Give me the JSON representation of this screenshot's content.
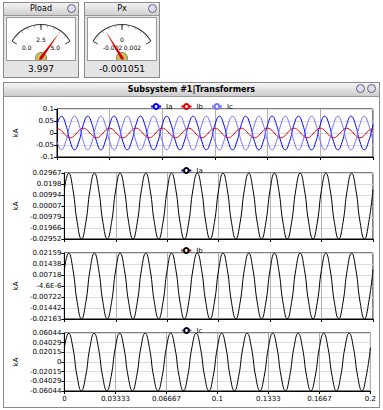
{
  "window": {
    "title": "Subsystem #1|Transformers"
  },
  "chart_data": [
    {
      "type": "gauge",
      "title": "Pload",
      "value": 3.997,
      "ylim": [
        0,
        5
      ],
      "yticks": [
        {
          "value": 0,
          "label": "0.0"
        },
        {
          "value": 2.5,
          "label": "2.5"
        },
        {
          "value": 5,
          "label": "5.0"
        }
      ]
    },
    {
      "type": "gauge",
      "title": "Px",
      "value": -0.001051,
      "ylim": [
        -0.002,
        0.002
      ],
      "yticks": [
        -0.002,
        0,
        0.002
      ]
    },
    {
      "type": "line",
      "ylabel": "kA",
      "grid": true,
      "legend": "top",
      "tick_labels": "y",
      "xlim": [
        0,
        0.2
      ],
      "xticks": [
        0,
        0.03333,
        0.06667,
        0.1,
        0.1333,
        0.1667,
        0.2
      ],
      "ylim": [
        -0.1,
        0.1
      ],
      "yticks": [
        -0.1,
        -0.05,
        0,
        0.05,
        0.1
      ],
      "x": [
        0,
        0.00278,
        0.00556,
        0.00833,
        0.01111,
        0.01389,
        0.01667,
        0.01944,
        0.02222,
        0.025,
        0.02778,
        0.03056,
        0.03333,
        0.03611,
        0.03889,
        0.04167,
        0.04444,
        0.04722,
        0.05,
        0.05278,
        0.05556,
        0.05833,
        0.06111,
        0.06389,
        0.06667,
        0.06944,
        0.07222,
        0.075,
        0.07778,
        0.08056,
        0.08333,
        0.08611,
        0.08889,
        0.09167,
        0.09444,
        0.09722,
        0.1,
        0.10278,
        0.10556,
        0.10833,
        0.11111,
        0.11389,
        0.11667,
        0.11944,
        0.12222,
        0.125,
        0.12778,
        0.13056,
        0.13333,
        0.13611,
        0.13889,
        0.14167,
        0.14444,
        0.14722,
        0.15,
        0.15278,
        0.15556,
        0.15833,
        0.16111,
        0.16389,
        0.16667,
        0.16944,
        0.17222,
        0.175,
        0.17778,
        0.18056,
        0.18333,
        0.18611,
        0.18889,
        0.19167,
        0.19444,
        0.19722,
        0.2
      ],
      "series": [
        {
          "name": "Ia",
          "color": "#0000ff",
          "values": [
            0.035,
            0.07,
            0.035,
            -0.035,
            -0.07,
            -0.035,
            0.035,
            0.07,
            0.035,
            -0.035,
            -0.07,
            -0.035,
            0.035,
            0.07,
            0.035,
            -0.035,
            -0.07,
            -0.035,
            0.035,
            0.07,
            0.035,
            -0.035,
            -0.07,
            -0.035,
            0.035,
            0.07,
            0.035,
            -0.035,
            -0.07,
            -0.035,
            0.035,
            0.07,
            0.035,
            -0.035,
            -0.07,
            -0.035,
            0.035,
            0.07,
            0.035,
            -0.035,
            -0.07,
            -0.035,
            0.035,
            0.07,
            0.035,
            -0.035,
            -0.07,
            -0.035,
            0.035,
            0.07,
            0.035,
            -0.035,
            -0.07,
            -0.035,
            0.035,
            0.07,
            0.035,
            -0.035,
            -0.07,
            -0.035,
            0.035,
            0.07,
            0.035,
            -0.035,
            -0.07,
            -0.035,
            0.035,
            0.07,
            0.035,
            -0.035,
            -0.07,
            -0.035,
            0.035
          ]
        },
        {
          "name": "Ib",
          "color": "#e00000",
          "values": [
            0.02,
            0.01,
            -0.01,
            -0.02,
            -0.01,
            0.01,
            0.02,
            0.01,
            -0.01,
            -0.02,
            -0.01,
            0.01,
            0.02,
            0.01,
            -0.01,
            -0.02,
            -0.01,
            0.01,
            0.02,
            0.01,
            -0.01,
            -0.02,
            -0.01,
            0.01,
            0.02,
            0.01,
            -0.01,
            -0.02,
            -0.01,
            0.01,
            0.02,
            0.01,
            -0.01,
            -0.02,
            -0.01,
            0.01,
            0.02,
            0.01,
            -0.01,
            -0.02,
            -0.01,
            0.01,
            0.02,
            0.01,
            -0.01,
            -0.02,
            -0.01,
            0.01,
            0.02,
            0.01,
            -0.01,
            -0.02,
            -0.01,
            0.01,
            0.02,
            0.01,
            -0.01,
            -0.02,
            -0.01,
            0.01,
            0.02,
            0.01,
            -0.01,
            -0.02,
            -0.01,
            0.01,
            0.02,
            0.01,
            -0.01,
            -0.02,
            -0.01,
            0.01,
            0.02
          ]
        },
        {
          "name": "Ic",
          "color": "#7070ff",
          "values": [
            -0.035,
            -0.07,
            -0.035,
            0.035,
            0.07,
            0.035,
            -0.035,
            -0.07,
            -0.035,
            0.035,
            0.07,
            0.035,
            -0.035,
            -0.07,
            -0.035,
            0.035,
            0.07,
            0.035,
            -0.035,
            -0.07,
            -0.035,
            0.035,
            0.07,
            0.035,
            -0.035,
            -0.07,
            -0.035,
            0.035,
            0.07,
            0.035,
            -0.035,
            -0.07,
            -0.035,
            0.035,
            0.07,
            0.035,
            -0.035,
            -0.07,
            -0.035,
            0.035,
            0.07,
            0.035,
            -0.035,
            -0.07,
            -0.035,
            0.035,
            0.07,
            0.035,
            -0.035,
            -0.07,
            -0.035,
            0.035,
            0.07,
            0.035,
            -0.035,
            -0.07,
            -0.035,
            0.035,
            0.07,
            0.035,
            -0.035,
            -0.07,
            -0.035,
            0.035,
            0.07,
            0.035,
            -0.035,
            -0.07,
            -0.035,
            0.035,
            0.07,
            0.035,
            -0.035
          ]
        }
      ]
    },
    {
      "type": "line",
      "ylabel": "kA",
      "grid": true,
      "legend": "top",
      "tick_labels": "y",
      "xlim": [
        0,
        0.2
      ],
      "xticks": [
        0,
        0.03333,
        0.06667,
        0.1,
        0.1333,
        0.1667,
        0.2
      ],
      "ylim": [
        -0.02952,
        0.02967
      ],
      "yticks": [
        -0.02952,
        -0.01966,
        -0.00979,
        7e-05,
        0.00994,
        0.0198,
        0.02967
      ],
      "x": [
        0,
        0.00278,
        0.00556,
        0.00833,
        0.01111,
        0.01389,
        0.01667,
        0.01944,
        0.02222,
        0.025,
        0.02778,
        0.03056,
        0.03333,
        0.03611,
        0.03889,
        0.04167,
        0.04444,
        0.04722,
        0.05,
        0.05278,
        0.05556,
        0.05833,
        0.06111,
        0.06389,
        0.06667,
        0.06944,
        0.07222,
        0.075,
        0.07778,
        0.08056,
        0.08333,
        0.08611,
        0.08889,
        0.09167,
        0.09444,
        0.09722,
        0.1,
        0.10278,
        0.10556,
        0.10833,
        0.11111,
        0.11389,
        0.11667,
        0.11944,
        0.12222,
        0.125,
        0.12778,
        0.13056,
        0.13333,
        0.13611,
        0.13889,
        0.14167,
        0.14444,
        0.14722,
        0.15,
        0.15278,
        0.15556,
        0.15833,
        0.16111,
        0.16389,
        0.16667,
        0.16944,
        0.17222,
        0.175,
        0.17778,
        0.18056,
        0.18333,
        0.18611,
        0.18889,
        0.19167,
        0.19444,
        0.19722,
        0.2
      ],
      "series": [
        {
          "name": "Ia",
          "color": "#000000",
          "values": [
            0.01475,
            0.0295,
            0.01475,
            -0.01475,
            -0.0295,
            -0.01475,
            0.01475,
            0.0295,
            0.01475,
            -0.01475,
            -0.0295,
            -0.01475,
            0.01475,
            0.0295,
            0.01475,
            -0.01475,
            -0.0295,
            -0.01475,
            0.01475,
            0.0295,
            0.01475,
            -0.01475,
            -0.0295,
            -0.01475,
            0.01475,
            0.0295,
            0.01475,
            -0.01475,
            -0.0295,
            -0.01475,
            0.01475,
            0.0295,
            0.01475,
            -0.01475,
            -0.0295,
            -0.01475,
            0.01475,
            0.0295,
            0.01475,
            -0.01475,
            -0.0295,
            -0.01475,
            0.01475,
            0.0295,
            0.01475,
            -0.01475,
            -0.0295,
            -0.01475,
            0.01475,
            0.0295,
            0.01475,
            -0.01475,
            -0.0295,
            -0.01475,
            0.01475,
            0.0295,
            0.01475,
            -0.01475,
            -0.0295,
            -0.01475,
            0.01475,
            0.0295,
            0.01475,
            -0.01475,
            -0.0295,
            -0.01475,
            0.01475,
            0.0295,
            0.01475,
            -0.01475,
            -0.0295,
            -0.01475,
            0.01475
          ]
        }
      ]
    },
    {
      "type": "line",
      "ylabel": "kA",
      "grid": true,
      "legend": "top",
      "tick_labels": "y",
      "xlim": [
        0,
        0.2
      ],
      "xticks": [
        0,
        0.03333,
        0.06667,
        0.1,
        0.1333,
        0.1667,
        0.2
      ],
      "ylim": [
        -0.02163,
        0.02159
      ],
      "yticks": [
        -0.02163,
        -0.01442,
        -0.00722,
        {
          "value": -4.6e-06,
          "label": "-4.6E-6"
        },
        0.00718,
        0.01438,
        0.02159
      ],
      "x": [
        0,
        0.00278,
        0.00556,
        0.00833,
        0.01111,
        0.01389,
        0.01667,
        0.01944,
        0.02222,
        0.025,
        0.02778,
        0.03056,
        0.03333,
        0.03611,
        0.03889,
        0.04167,
        0.04444,
        0.04722,
        0.05,
        0.05278,
        0.05556,
        0.05833,
        0.06111,
        0.06389,
        0.06667,
        0.06944,
        0.07222,
        0.075,
        0.07778,
        0.08056,
        0.08333,
        0.08611,
        0.08889,
        0.09167,
        0.09444,
        0.09722,
        0.1,
        0.10278,
        0.10556,
        0.10833,
        0.11111,
        0.11389,
        0.11667,
        0.11944,
        0.12222,
        0.125,
        0.12778,
        0.13056,
        0.13333,
        0.13611,
        0.13889,
        0.14167,
        0.14444,
        0.14722,
        0.15,
        0.15278,
        0.15556,
        0.15833,
        0.16111,
        0.16389,
        0.16667,
        0.16944,
        0.17222,
        0.175,
        0.17778,
        0.18056,
        0.18333,
        0.18611,
        0.18889,
        0.19167,
        0.19444,
        0.19722,
        0.2
      ],
      "series": [
        {
          "name": "Ib",
          "color": "#000000",
          "values": [
            0.01075,
            0.0215,
            0.01075,
            -0.01075,
            -0.0215,
            -0.01075,
            0.01075,
            0.0215,
            0.01075,
            -0.01075,
            -0.0215,
            -0.01075,
            0.01075,
            0.0215,
            0.01075,
            -0.01075,
            -0.0215,
            -0.01075,
            0.01075,
            0.0215,
            0.01075,
            -0.01075,
            -0.0215,
            -0.01075,
            0.01075,
            0.0215,
            0.01075,
            -0.01075,
            -0.0215,
            -0.01075,
            0.01075,
            0.0215,
            0.01075,
            -0.01075,
            -0.0215,
            -0.01075,
            0.01075,
            0.0215,
            0.01075,
            -0.01075,
            -0.0215,
            -0.01075,
            0.01075,
            0.0215,
            0.01075,
            -0.01075,
            -0.0215,
            -0.01075,
            0.01075,
            0.0215,
            0.01075,
            -0.01075,
            -0.0215,
            -0.01075,
            0.01075,
            0.0215,
            0.01075,
            -0.01075,
            -0.0215,
            -0.01075,
            0.01075,
            0.0215,
            0.01075,
            -0.01075,
            -0.0215,
            -0.01075,
            0.01075,
            0.0215,
            0.01075,
            -0.01075,
            -0.0215,
            -0.01075,
            0.01075
          ]
        }
      ]
    },
    {
      "type": "line",
      "ylabel": "kA",
      "grid": true,
      "legend": "top",
      "xlim": [
        0,
        0.2
      ],
      "xticks": [
        0,
        0.03333,
        0.06667,
        0.1,
        0.1333,
        0.1667,
        0.2
      ],
      "ylim": [
        -0.06044,
        0.06044
      ],
      "yticks": [
        -0.06044,
        -0.04029,
        -0.02015,
        0,
        0.02015,
        0.04029,
        0.06044
      ],
      "x": [
        0,
        0.00278,
        0.00556,
        0.00833,
        0.01111,
        0.01389,
        0.01667,
        0.01944,
        0.02222,
        0.025,
        0.02778,
        0.03056,
        0.03333,
        0.03611,
        0.03889,
        0.04167,
        0.04444,
        0.04722,
        0.05,
        0.05278,
        0.05556,
        0.05833,
        0.06111,
        0.06389,
        0.06667,
        0.06944,
        0.07222,
        0.075,
        0.07778,
        0.08056,
        0.08333,
        0.08611,
        0.08889,
        0.09167,
        0.09444,
        0.09722,
        0.1,
        0.10278,
        0.10556,
        0.10833,
        0.11111,
        0.11389,
        0.11667,
        0.11944,
        0.12222,
        0.125,
        0.12778,
        0.13056,
        0.13333,
        0.13611,
        0.13889,
        0.14167,
        0.14444,
        0.14722,
        0.15,
        0.15278,
        0.15556,
        0.15833,
        0.16111,
        0.16389,
        0.16667,
        0.16944,
        0.17222,
        0.175,
        0.17778,
        0.18056,
        0.18333,
        0.18611,
        0.18889,
        0.19167,
        0.19444,
        0.19722,
        0.2
      ],
      "series": [
        {
          "name": "Ic",
          "color": "#000000",
          "values": [
            0.03,
            0.06,
            0.03,
            -0.03,
            -0.06,
            -0.03,
            0.03,
            0.06,
            0.03,
            -0.03,
            -0.06,
            -0.03,
            0.03,
            0.06,
            0.03,
            -0.03,
            -0.06,
            -0.03,
            0.03,
            0.06,
            0.03,
            -0.03,
            -0.06,
            -0.03,
            0.03,
            0.06,
            0.03,
            -0.03,
            -0.06,
            -0.03,
            0.03,
            0.06,
            0.03,
            -0.03,
            -0.06,
            -0.03,
            0.03,
            0.06,
            0.03,
            -0.03,
            -0.06,
            -0.03,
            0.03,
            0.06,
            0.03,
            -0.03,
            -0.06,
            -0.03,
            0.03,
            0.06,
            0.03,
            -0.03,
            -0.06,
            -0.03,
            0.03,
            0.06,
            0.03,
            -0.03,
            -0.06,
            -0.03,
            0.03,
            0.06,
            0.03,
            -0.03,
            -0.06,
            -0.03,
            0.03,
            0.06,
            0.03,
            -0.03,
            -0.06,
            -0.03,
            0.03
          ]
        }
      ]
    }
  ]
}
